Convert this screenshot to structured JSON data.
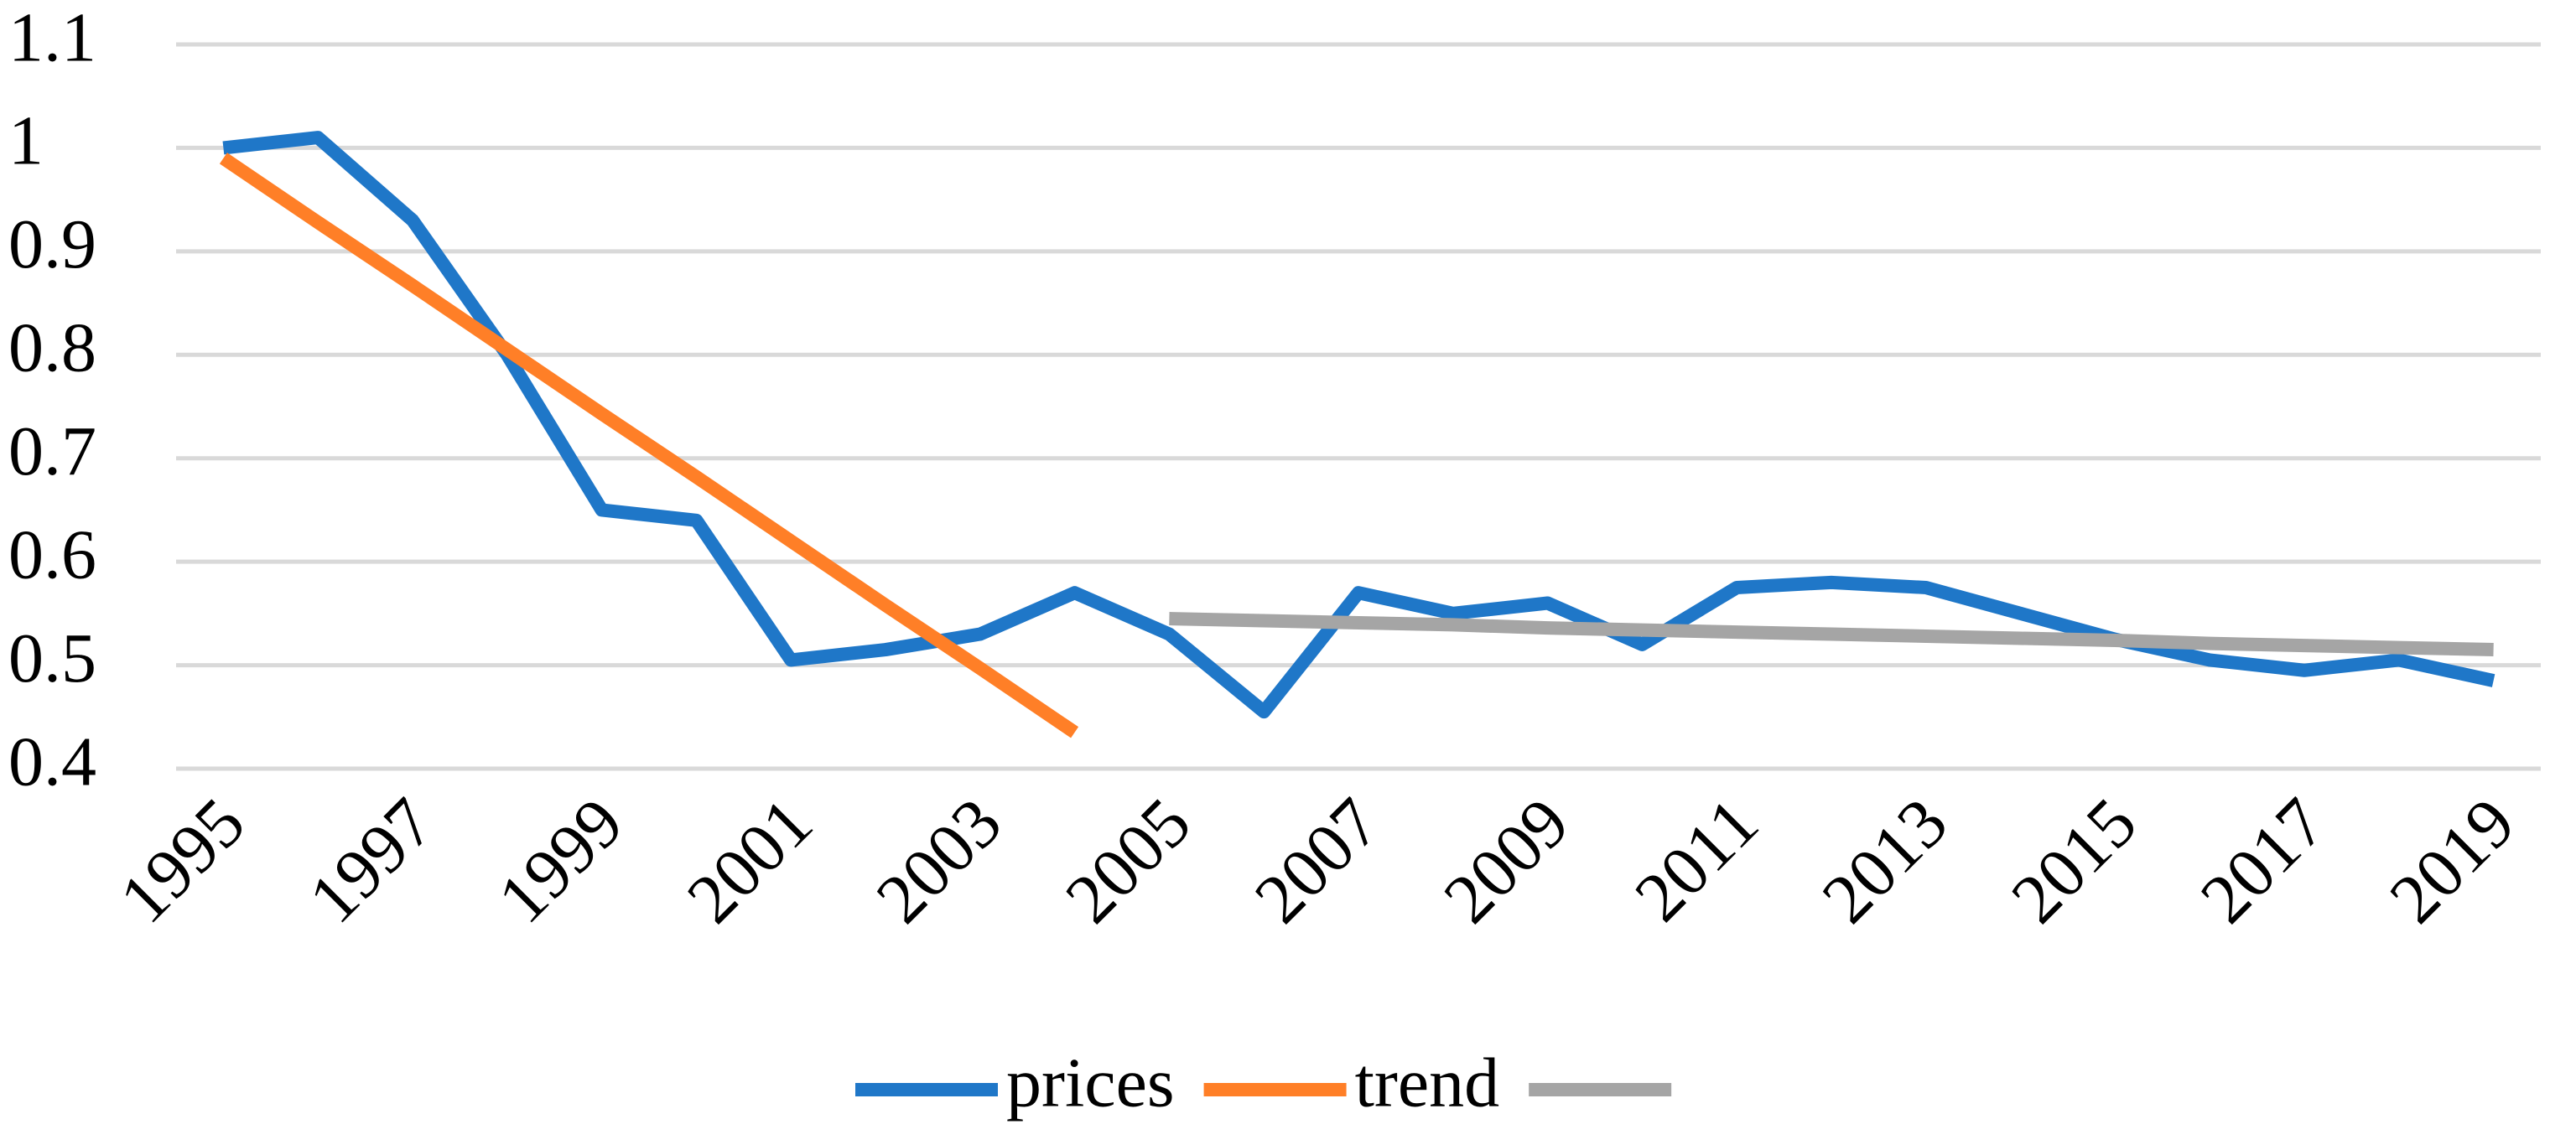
{
  "chart_data": {
    "type": "line",
    "x": [
      1995,
      1996,
      1997,
      1998,
      1999,
      2000,
      2001,
      2002,
      2003,
      2004,
      2005,
      2006,
      2007,
      2008,
      2009,
      2010,
      2011,
      2012,
      2013,
      2014,
      2015,
      2016,
      2017,
      2018,
      2019
    ],
    "xlim": [
      1994.5,
      2019.5
    ],
    "xticks": [
      1995,
      1997,
      1999,
      2001,
      2003,
      2005,
      2007,
      2009,
      2011,
      2013,
      2015,
      2017,
      2019
    ],
    "ylim": [
      0.4,
      1.1
    ],
    "yticks": [
      0.4,
      0.5,
      0.6,
      0.7,
      0.8,
      0.9,
      1,
      1.1
    ],
    "grid": true,
    "legend": "bottom",
    "series": [
      {
        "name": "prices",
        "color": "#1f77c8",
        "values": [
          1.0,
          1.01,
          0.93,
          0.8,
          0.65,
          0.64,
          0.505,
          0.515,
          0.53,
          0.57,
          0.53,
          0.455,
          0.57,
          0.55,
          0.56,
          0.52,
          0.575,
          0.58,
          0.575,
          0.55,
          0.525,
          0.505,
          0.495,
          0.505,
          0.485
        ]
      },
      {
        "name": "trend",
        "color": "#ff7f27",
        "values": [
          0.99,
          0.928,
          0.867,
          0.805,
          0.743,
          0.682,
          0.62,
          0.558,
          0.497,
          0.435,
          null,
          null,
          null,
          null,
          null,
          null,
          null,
          null,
          null,
          null,
          null,
          null,
          null,
          null,
          null
        ]
      },
      {
        "color": "#a5a5a5",
        "values": [
          null,
          null,
          null,
          null,
          null,
          null,
          null,
          null,
          null,
          null,
          0.545,
          0.543,
          0.541,
          0.539,
          0.536,
          0.534,
          0.532,
          0.53,
          0.528,
          0.526,
          0.524,
          0.521,
          0.519,
          0.517,
          0.515
        ]
      }
    ]
  }
}
